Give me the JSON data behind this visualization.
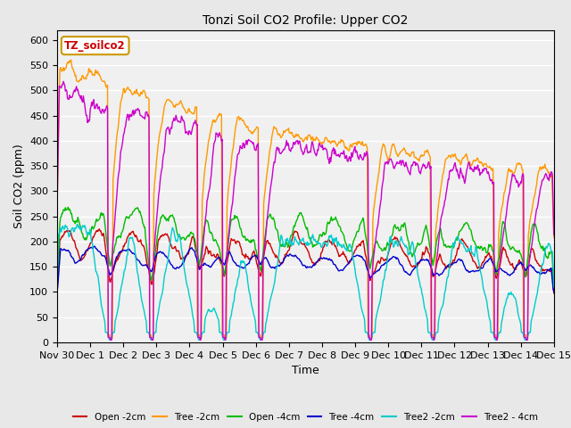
{
  "title": "Tonzi Soil CO2 Profile: Upper CO2",
  "xlabel": "Time",
  "ylabel": "Soil CO2 (ppm)",
  "ylim": [
    0,
    620
  ],
  "yticks": [
    0,
    50,
    100,
    150,
    200,
    250,
    300,
    350,
    400,
    450,
    500,
    550,
    600
  ],
  "background_color": "#e8e8e8",
  "plot_background": "#f0f0f0",
  "legend_label": "TZ_soilco2",
  "legend_box_color": "#cc9900",
  "legend_text_color": "#cc0000",
  "series": {
    "Open_2cm": {
      "color": "#cc0000",
      "label": "Open -2cm",
      "lw": 1.0
    },
    "Tree_2cm": {
      "color": "#ff9900",
      "label": "Tree -2cm",
      "lw": 1.0
    },
    "Open_4cm": {
      "color": "#00bb00",
      "label": "Open -4cm",
      "lw": 1.0
    },
    "Tree_4cm": {
      "color": "#0000cc",
      "label": "Tree -4cm",
      "lw": 1.0
    },
    "Tree2_2cm": {
      "color": "#00cccc",
      "label": "Tree2 -2cm",
      "lw": 1.0
    },
    "Tree2_4cm": {
      "color": "#cc00cc",
      "label": "Tree2 - 4cm",
      "lw": 1.0
    }
  },
  "n_days": 15,
  "pts_per_day": 48,
  "figsize": [
    6.4,
    4.8
  ],
  "dpi": 100
}
